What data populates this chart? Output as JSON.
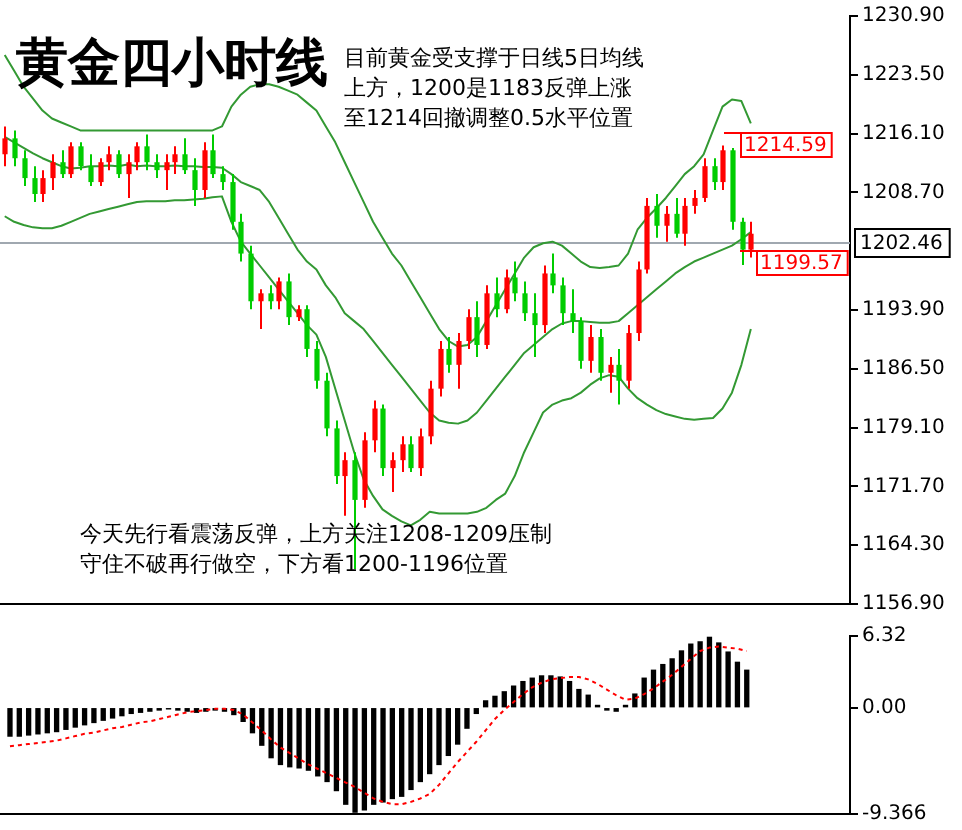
{
  "chart_data": [
    {
      "type": "candlestick",
      "title": "黄金四小时线",
      "categories": [
        null,
        null,
        null,
        null,
        null,
        null,
        null,
        null,
        null,
        null,
        null,
        null,
        null,
        null,
        null,
        null,
        null,
        null,
        null,
        null,
        null,
        null,
        null,
        null,
        null,
        null,
        null,
        null,
        null,
        null,
        null,
        null,
        null,
        null,
        null,
        null,
        null,
        null,
        null,
        null,
        null,
        null,
        null,
        null,
        null,
        null,
        null,
        null,
        null,
        null,
        null,
        null,
        null,
        null,
        null,
        null,
        null,
        null,
        null,
        null,
        null,
        null,
        null,
        null,
        null,
        null,
        null,
        null,
        null,
        null,
        null,
        null,
        null,
        null,
        null,
        null,
        null,
        null,
        null,
        null
      ],
      "ohlc": [
        [
          1213.5,
          1217,
          1212,
          1215.5
        ],
        [
          1215.5,
          1216.5,
          1212,
          1213
        ],
        [
          1213,
          1214,
          1209.5,
          1210.5
        ],
        [
          1210.5,
          1212,
          1207.5,
          1208.5
        ],
        [
          1208.5,
          1211.5,
          1207.5,
          1210.5
        ],
        [
          1210.5,
          1213.5,
          1209,
          1212.5
        ],
        [
          1212.5,
          1214,
          1210.5,
          1211
        ],
        [
          1211,
          1215,
          1210.5,
          1214.5
        ],
        [
          1214.5,
          1215,
          1211.5,
          1212
        ],
        [
          1212,
          1213.5,
          1209.5,
          1210
        ],
        [
          1210,
          1213,
          1209.5,
          1212.5
        ],
        [
          1212.5,
          1214.5,
          1211.5,
          1213.5
        ],
        [
          1213.5,
          1214,
          1210.5,
          1211
        ],
        [
          1211,
          1213.5,
          1208,
          1212.5
        ],
        [
          1212.5,
          1215,
          1211.5,
          1214.5
        ],
        [
          1214.5,
          1216,
          1211.5,
          1212.5
        ],
        [
          1212.5,
          1213.5,
          1210.5,
          1211.5
        ],
        [
          1211.5,
          1213.5,
          1209,
          1212.5
        ],
        [
          1212.5,
          1214.5,
          1211,
          1213.5
        ],
        [
          1213.5,
          1215.5,
          1211,
          1211.5
        ],
        [
          1211.5,
          1213,
          1207,
          1209
        ],
        [
          1209,
          1215,
          1208,
          1214
        ],
        [
          1214,
          1216,
          1210.5,
          1211
        ],
        [
          1211,
          1212,
          1209,
          1210
        ],
        [
          1210,
          1211,
          1204,
          1205
        ],
        [
          1205,
          1206,
          1200,
          1201
        ],
        [
          1201,
          1202,
          1194,
          1195
        ],
        [
          1195,
          1196.5,
          1191.5,
          1196
        ],
        [
          1196,
          1197,
          1194,
          1195
        ],
        [
          1195,
          1198,
          1194,
          1197.5
        ],
        [
          1197.5,
          1198.5,
          1192,
          1193
        ],
        [
          1193,
          1194.5,
          1192.5,
          1194
        ],
        [
          1194,
          1194.5,
          1188,
          1189
        ],
        [
          1189,
          1190,
          1184,
          1185
        ],
        [
          1185,
          1186,
          1178,
          1179
        ],
        [
          1179,
          1180,
          1172,
          1173
        ],
        [
          1173,
          1176,
          1168,
          1175
        ],
        [
          1175,
          1176,
          1161.3,
          1170
        ],
        [
          1170,
          1178.5,
          1169,
          1177.5
        ],
        [
          1177.5,
          1182.5,
          1176,
          1181.5
        ],
        [
          1181.5,
          1182,
          1173,
          1174
        ],
        [
          1174,
          1176,
          1171,
          1175
        ],
        [
          1175,
          1178,
          1173.5,
          1177
        ],
        [
          1177,
          1178,
          1173.5,
          1174
        ],
        [
          1174,
          1179,
          1173,
          1178
        ],
        [
          1178,
          1185,
          1177,
          1184
        ],
        [
          1184,
          1190,
          1183,
          1189
        ],
        [
          1189,
          1190.5,
          1186,
          1187
        ],
        [
          1187,
          1191,
          1184,
          1190
        ],
        [
          1190,
          1194,
          1189,
          1193
        ],
        [
          1193,
          1195,
          1188,
          1189.5
        ],
        [
          1189.5,
          1197,
          1189,
          1196
        ],
        [
          1196,
          1198,
          1193,
          1194
        ],
        [
          1194,
          1199,
          1193.5,
          1198
        ],
        [
          1198,
          1200,
          1195,
          1196
        ],
        [
          1196,
          1197.5,
          1192.5,
          1193.5
        ],
        [
          1193.5,
          1196,
          1188,
          1192
        ],
        [
          1192,
          1199.5,
          1191,
          1198.5
        ],
        [
          1198.5,
          1201,
          1196,
          1197
        ],
        [
          1197,
          1198,
          1192,
          1193.5
        ],
        [
          1193.5,
          1196.5,
          1191,
          1192.5
        ],
        [
          1192.5,
          1193,
          1186.5,
          1187.5
        ],
        [
          1187.5,
          1192,
          1186,
          1190.5
        ],
        [
          1190.5,
          1191.5,
          1185,
          1186
        ],
        [
          1186,
          1188,
          1183.5,
          1187
        ],
        [
          1187,
          1189,
          1182,
          1185
        ],
        [
          1185,
          1192,
          1184,
          1191
        ],
        [
          1191,
          1200,
          1190,
          1199
        ],
        [
          1199,
          1208,
          1198.5,
          1207
        ],
        [
          1207,
          1208.5,
          1203,
          1204.5
        ],
        [
          1204.5,
          1207,
          1202.5,
          1206
        ],
        [
          1206,
          1208,
          1203,
          1203.5
        ],
        [
          1203.5,
          1208,
          1202,
          1207
        ],
        [
          1207,
          1209,
          1206,
          1208
        ],
        [
          1208,
          1213,
          1207.5,
          1212
        ],
        [
          1212,
          1213,
          1209,
          1210
        ],
        [
          1210,
          1214.59,
          1209,
          1214
        ],
        [
          1214,
          1214.3,
          1204,
          1205
        ],
        [
          1205,
          1205.5,
          1199.57,
          1201.5
        ],
        [
          1201.5,
          1205,
          1200.5,
          1203.5
        ]
      ],
      "colors": [
        "#ff0000",
        "#00cc00",
        "#00cc00",
        "#00cc00",
        "#ff0000",
        "#ff0000",
        "#00cc00",
        "#ff0000",
        "#00cc00",
        "#00cc00",
        "#ff0000",
        "#ff0000",
        "#00cc00",
        "#ff0000",
        "#ff0000",
        "#00cc00",
        "#00cc00",
        "#ff0000",
        "#ff0000",
        "#00cc00",
        "#00cc00",
        "#ff0000",
        "#00cc00",
        "#00cc00",
        "#00cc00",
        "#00cc00",
        "#00cc00",
        "#ff0000",
        "#00cc00",
        "#ff0000",
        "#00cc00",
        "#ff0000",
        "#00cc00",
        "#00cc00",
        "#00cc00",
        "#00cc00",
        "#ff0000",
        "#00cc00",
        "#ff0000",
        "#ff0000",
        "#00cc00",
        "#ff0000",
        "#ff0000",
        "#00cc00",
        "#ff0000",
        "#ff0000",
        "#ff0000",
        "#00cc00",
        "#ff0000",
        "#ff0000",
        "#00cc00",
        "#ff0000",
        "#00cc00",
        "#ff0000",
        "#00cc00",
        "#00cc00",
        "#00cc00",
        "#ff0000",
        "#00cc00",
        "#00cc00",
        "#00cc00",
        "#00cc00",
        "#ff0000",
        "#00cc00",
        "#ff0000",
        "#00cc00",
        "#ff0000",
        "#ff0000",
        "#ff0000",
        "#00cc00",
        "#ff0000",
        "#00cc00",
        "#ff0000",
        "#ff0000",
        "#ff0000",
        "#00cc00",
        "#ff0000",
        "#00cc00",
        "#00cc00",
        "#ff0000"
      ],
      "series": [
        {
          "type": "line",
          "color": "#339933",
          "values": [
            1226,
            1224,
            1222,
            1220.5,
            1219,
            1218,
            1217.5,
            1217,
            1216.5,
            1216.5,
            1216.5,
            1216.5,
            1216.5,
            1216.5,
            1216.5,
            1216.5,
            1216.5,
            1216.5,
            1216.5,
            1216.5,
            1216.5,
            1216.5,
            1216.5,
            1217,
            1219.5,
            1221,
            1222,
            1222.3,
            1222.3,
            1222,
            1221.5,
            1221,
            1220,
            1219,
            1217,
            1215,
            1212.5,
            1210,
            1207.5,
            1205,
            1203,
            1201,
            1199.5,
            1197.5,
            1195.5,
            1193.5,
            1191.5,
            1190,
            1189.3,
            1189.5,
            1190.5,
            1192.5,
            1194.5,
            1196.5,
            1198.5,
            1200.5,
            1201.8,
            1202.3,
            1202.5,
            1202,
            1201,
            1200,
            1199.3,
            1199.2,
            1199.3,
            1199.5,
            1201,
            1204,
            1205.5,
            1206.7,
            1208,
            1209.5,
            1211,
            1212,
            1213.5,
            1216.5,
            1219.5,
            1220.4,
            1220.2,
            1217.4
          ]
        },
        {
          "type": "line",
          "color": "#339933",
          "values": [
            1215.7,
            1215,
            1214.3,
            1213.6,
            1213,
            1212.5,
            1212,
            1211.7,
            1211.8,
            1212,
            1212,
            1212.1,
            1212,
            1212.2,
            1212,
            1212.1,
            1212,
            1212,
            1212.1,
            1212,
            1212,
            1211.9,
            1211.9,
            1211.8,
            1211,
            1210,
            1209.5,
            1209,
            1207.5,
            1205.5,
            1203.5,
            1201.5,
            1200,
            1199,
            1197,
            1195.5,
            1193.5,
            1192.5,
            1191.5,
            1190,
            1188.5,
            1187,
            1185.5,
            1184,
            1182.5,
            1181,
            1180,
            1179.7,
            1179.6,
            1180,
            1181,
            1182.5,
            1184,
            1185.5,
            1187,
            1188.5,
            1189.5,
            1190.5,
            1191.5,
            1192.2,
            1192.5,
            1192.5,
            1192.4,
            1192.3,
            1192.3,
            1192.5,
            1193.5,
            1194.5,
            1195.5,
            1196.5,
            1197.5,
            1198.5,
            1199.3,
            1200,
            1200.5,
            1201,
            1201.5,
            1202,
            1202.8,
            1203.7
          ]
        },
        {
          "type": "line",
          "color": "#339933",
          "values": [
            1205.7,
            1205,
            1204.6,
            1204.3,
            1204.2,
            1204.2,
            1204.5,
            1205,
            1205.5,
            1206,
            1206.3,
            1206.6,
            1206.9,
            1207.2,
            1207.5,
            1207.6,
            1207.6,
            1207.6,
            1207.7,
            1207.7,
            1207.8,
            1207.9,
            1208.1,
            1208.2,
            1205,
            1202.5,
            1201,
            1199.5,
            1198,
            1196.5,
            1195,
            1193.5,
            1192,
            1190.8,
            1188,
            1184,
            1180,
            1176,
            1172.6,
            1170.5,
            1168.8,
            1168,
            1167.3,
            1166.8,
            1167.5,
            1168.5,
            1168.3,
            1168.3,
            1168.3,
            1168.3,
            1168.5,
            1169,
            1170,
            1170.8,
            1173,
            1176,
            1178.5,
            1181,
            1182,
            1182.5,
            1182.8,
            1183.5,
            1184.5,
            1185.3,
            1185.7,
            1185.5,
            1184,
            1182.8,
            1182,
            1181.3,
            1180.8,
            1180.5,
            1180.2,
            1180.1,
            1180.2,
            1180.3,
            1181.5,
            1183.5,
            1187,
            1191.5
          ]
        }
      ],
      "ylim": [
        1156.9,
        1230.9
      ],
      "yticks": [
        {
          "value": 1156.9,
          "label": "1156.90"
        },
        {
          "value": 1164.3,
          "label": "1164.30"
        },
        {
          "value": 1171.7,
          "label": "1171.70"
        },
        {
          "value": 1179.1,
          "label": "1179.10"
        },
        {
          "value": 1186.5,
          "label": "1186.50"
        },
        {
          "value": 1193.9,
          "label": "1193.90"
        },
        {
          "value": 1208.7,
          "label": "1208.70"
        },
        {
          "value": 1216.1,
          "label": "1216.10"
        },
        {
          "value": 1223.5,
          "label": "1223.50"
        },
        {
          "value": 1230.9,
          "label": "1230.90"
        }
      ],
      "ref_lines": [
        {
          "axis": "y",
          "value": 1202.46,
          "label": "1202.46",
          "color": "#a0a8b0"
        }
      ],
      "annotations": [
        "目前黄金受支撑于日线5日均线上方，1200是1183反弹上涨至1214回撤调整0.5水平位置",
        "今天先行看震荡反弹，上方关注1208-1209压制守住不破再行做空，下方看1200-1196位置",
        "1214.59",
        "1199.57"
      ],
      "tick_labels": "y",
      "legend": false,
      "grid": false
    },
    {
      "type": "bar",
      "categories": [
        null,
        null,
        null,
        null,
        null,
        null,
        null,
        null,
        null,
        null,
        null,
        null,
        null,
        null,
        null,
        null,
        null,
        null,
        null,
        null,
        null,
        null,
        null,
        null,
        null,
        null,
        null,
        null,
        null,
        null,
        null,
        null,
        null,
        null,
        null,
        null,
        null,
        null,
        null,
        null,
        null,
        null,
        null,
        null,
        null,
        null,
        null,
        null,
        null,
        null,
        null,
        null,
        null,
        null,
        null,
        null,
        null,
        null,
        null,
        null,
        null,
        null,
        null,
        null,
        null,
        null,
        null,
        null,
        null,
        null,
        null,
        null,
        null,
        null,
        null,
        null,
        null,
        null,
        null,
        null
      ],
      "series": [
        {
          "type": "bar",
          "color": "#000000",
          "values": [
            -2.5,
            -2.5,
            -2.4,
            -2.3,
            -2.2,
            -2.1,
            -1.9,
            -1.7,
            -1.5,
            -1.3,
            -1.1,
            -0.9,
            -0.7,
            -0.5,
            -0.4,
            -0.3,
            -0.2,
            -0.1,
            -0.2,
            -0.3,
            -0.4,
            -0.3,
            -0.2,
            -0.3,
            -0.6,
            -1.2,
            -2.2,
            -3.3,
            -4.4,
            -5,
            -5.2,
            -5.3,
            -5.5,
            -6,
            -6.5,
            -7.3,
            -8.5,
            -9.2,
            -9,
            -8.5,
            -8.3,
            -8,
            -7.8,
            -7.2,
            -6.5,
            -5.8,
            -5,
            -4.2,
            -3.2,
            -1.8,
            -0.5,
            0.6,
            1,
            1.4,
            1.9,
            2.3,
            2.6,
            2.8,
            2.8,
            2.7,
            2.3,
            1.6,
            1.1,
            0.2,
            -0.2,
            -0.3,
            0.2,
            1.2,
            2.6,
            3.3,
            3.8,
            4.3,
            5,
            5.6,
            5.8,
            6.2,
            5.7,
            4.9,
            4,
            3.3
          ]
        },
        {
          "type": "line",
          "color": "#ff0000",
          "line_style": "dotted",
          "values": [
            -3.4,
            -3.3,
            -3.2,
            -3.1,
            -3,
            -2.9,
            -2.7,
            -2.5,
            -2.3,
            -2.2,
            -2,
            -1.8,
            -1.7,
            -1.5,
            -1.3,
            -1.2,
            -1,
            -0.8,
            -0.6,
            -0.4,
            -0.3,
            -0.2,
            -0.1,
            -0.1,
            -0.2,
            -0.6,
            -1.3,
            -2,
            -2.8,
            -3.5,
            -4,
            -4.5,
            -5,
            -5.4,
            -5.8,
            -6.2,
            -6.6,
            -7,
            -7.5,
            -8,
            -8.3,
            -8.5,
            -8.5,
            -8.3,
            -8,
            -7.6,
            -6.8,
            -5.8,
            -4.8,
            -3.9,
            -3,
            -2,
            -1,
            -0.2,
            0.5,
            1.2,
            1.8,
            2.2,
            2.5,
            2.6,
            2.7,
            2.7,
            2.5,
            2.1,
            1.6,
            1.1,
            0.7,
            0.8,
            1.2,
            1.7,
            2.3,
            2.9,
            3.6,
            4.3,
            5,
            5.3,
            5.4,
            5.3,
            5.2,
            5
          ]
        }
      ],
      "ylim": [
        -9.366,
        6.32
      ],
      "yticks": [
        -9.366,
        {
          "value": 0,
          "label": "0.00"
        },
        6.32
      ],
      "tick_labels": "y",
      "legend": false,
      "grid": false
    }
  ]
}
